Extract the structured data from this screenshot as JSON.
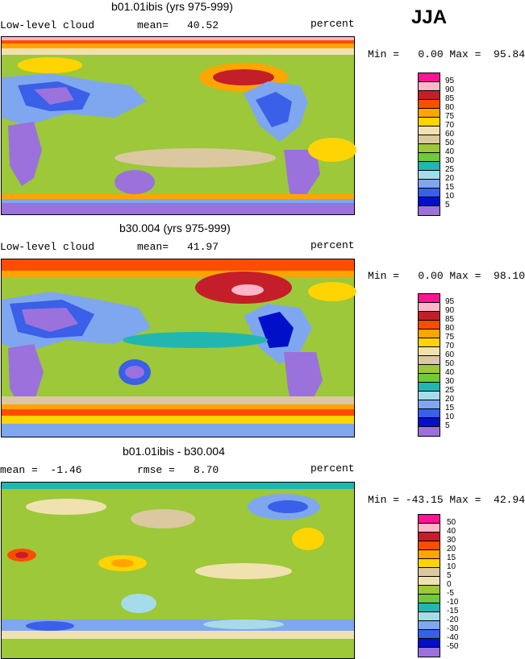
{
  "season": "JJA",
  "colors": {
    "full": [
      "#9b72dc",
      "#0010c8",
      "#3a5fe8",
      "#7ea7f0",
      "#a6dcea",
      "#22b6b0",
      "#6fc93a",
      "#9cc83a",
      "#dcc8a0",
      "#f0e2b0",
      "#ffd400",
      "#ffa500",
      "#ff4d00",
      "#c41e2a",
      "#ffb6c8",
      "#ff1493"
    ],
    "diff": [
      "#9b72dc",
      "#0010c8",
      "#3a5fe8",
      "#7ea7f0",
      "#a6dcea",
      "#22b6b0",
      "#6fc93a",
      "#9cc83a",
      "#f0e2b0",
      "#dcc8a0",
      "#ffd400",
      "#ffa500",
      "#ff4d00",
      "#c41e2a",
      "#ffb6c8",
      "#ff1493"
    ]
  },
  "panels": [
    {
      "title": "b01.01ibis (yrs 975-999)",
      "left_label": "Low-level cloud",
      "stat_label": "mean=",
      "stat_value": "40.52",
      "units": "percent",
      "minmax": "Min =   0.00 Max =  95.84",
      "levels": [
        "95",
        "90",
        "85",
        "80",
        "75",
        "70",
        "60",
        "50",
        "40",
        "30",
        "25",
        "20",
        "15",
        "10",
        "5"
      ]
    },
    {
      "title": "b30.004 (yrs 975-999)",
      "left_label": "Low-level cloud",
      "stat_label": "mean=",
      "stat_value": "41.97",
      "units": "percent",
      "minmax": "Min =   0.00 Max =  98.10",
      "levels": [
        "95",
        "90",
        "85",
        "80",
        "75",
        "70",
        "60",
        "50",
        "40",
        "30",
        "25",
        "20",
        "15",
        "10",
        "5"
      ]
    },
    {
      "title": "b01.01ibis - b30.004",
      "left_label": "mean =  -1.46",
      "stat_label": "rmse =",
      "stat_value": "8.70",
      "units": "percent",
      "minmax": "Min = -43.15 Max =  42.94",
      "levels": [
        "50",
        "40",
        "30",
        "20",
        "15",
        "10",
        "5",
        "0",
        "-5",
        "-10",
        "-15",
        "-20",
        "-30",
        "-40",
        "-50"
      ]
    }
  ]
}
